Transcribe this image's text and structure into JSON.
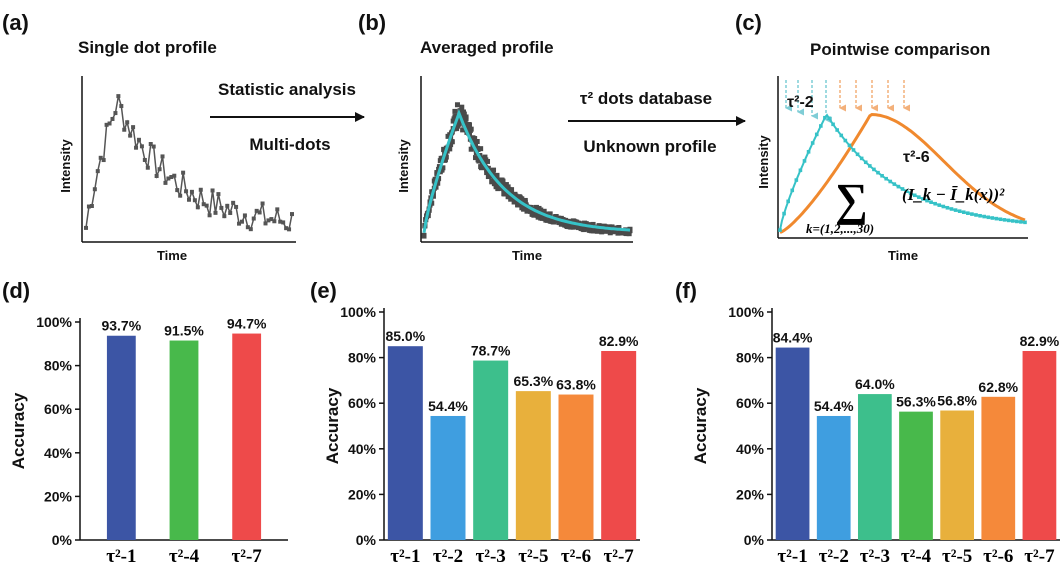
{
  "panels": {
    "a": {
      "label": "(a)",
      "title": "Single dot profile",
      "xlabel": "Time",
      "ylabel": "Intensity"
    },
    "b": {
      "label": "(b)",
      "title": "Averaged profile",
      "xlabel": "Time",
      "ylabel": "Intensity"
    },
    "c": {
      "label": "(c)",
      "title": "Pointwise comparison",
      "xlabel": "Time",
      "ylabel": "Intensity",
      "curve1_label": "τ²-2",
      "curve2_label": "τ²-6",
      "sum_symbol": "∑",
      "sum_index": "k=(1,2,...,30)",
      "sum_term": "(I_k − Ī_k(x))²"
    },
    "d": {
      "label": "(d)"
    },
    "e": {
      "label": "(e)"
    },
    "f": {
      "label": "(f)"
    }
  },
  "arrows": {
    "ab_top": "Statistic analysis",
    "ab_bottom": "Multi-dots",
    "bc_top": "τ² dots database",
    "bc_bottom": "Unknown profile"
  },
  "colors": {
    "profile_gray": "#555555",
    "fit_cyan": "#36c2c7",
    "fit_orange": "#f0892e"
  },
  "chart_data": [
    {
      "panel": "d",
      "type": "bar",
      "ylabel": "Accuracy",
      "ylim": [
        0,
        100
      ],
      "yticks": [
        "0%",
        "20%",
        "40%",
        "60%",
        "80%",
        "100%"
      ],
      "categories": [
        "τ²-1",
        "τ²-4",
        "τ²-7"
      ],
      "values": [
        93.7,
        91.5,
        94.7
      ],
      "value_labels": [
        "93.7%",
        "91.5%",
        "94.7%"
      ],
      "colors": [
        "#3c55a5",
        "#48b94b",
        "#ee4a4a"
      ]
    },
    {
      "panel": "e",
      "type": "bar",
      "ylabel": "Accuracy",
      "ylim": [
        0,
        100
      ],
      "yticks": [
        "0%",
        "20%",
        "40%",
        "60%",
        "80%",
        "100%"
      ],
      "categories": [
        "τ²-1",
        "τ²-2",
        "τ²-3",
        "τ²-5",
        "τ²-6",
        "τ²-7"
      ],
      "values": [
        85.0,
        54.4,
        78.7,
        65.3,
        63.8,
        82.9
      ],
      "value_labels": [
        "85.0%",
        "54.4%",
        "78.7%",
        "65.3%",
        "63.8%",
        "82.9%"
      ],
      "colors": [
        "#3c55a5",
        "#3f9ee0",
        "#3dbf8c",
        "#e8b03c",
        "#f5893a",
        "#ee4a4a"
      ]
    },
    {
      "panel": "f",
      "type": "bar",
      "ylabel": "Accuracy",
      "ylim": [
        0,
        100
      ],
      "yticks": [
        "0%",
        "20%",
        "40%",
        "60%",
        "80%",
        "100%"
      ],
      "categories": [
        "τ²-1",
        "τ²-2",
        "τ²-3",
        "τ²-4",
        "τ²-5",
        "τ²-6",
        "τ²-7"
      ],
      "values": [
        84.4,
        54.4,
        64.0,
        56.3,
        56.8,
        62.8,
        82.9
      ],
      "value_labels": [
        "84.4%",
        "54.4%",
        "64.0%",
        "56.3%",
        "56.8%",
        "62.8%",
        "82.9%"
      ],
      "colors": [
        "#3c55a5",
        "#3f9ee0",
        "#3dbf8c",
        "#48b94b",
        "#e8b03c",
        "#f5893a",
        "#ee4a4a"
      ]
    }
  ]
}
